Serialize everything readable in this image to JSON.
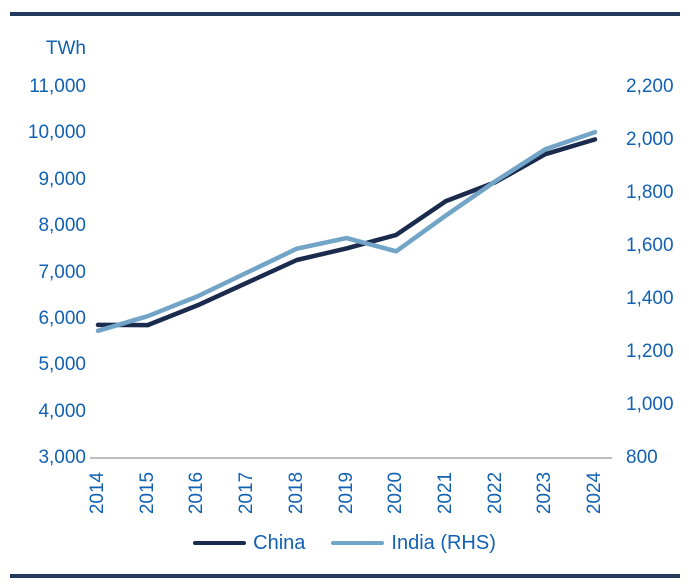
{
  "chart_data": {
    "type": "line",
    "title": "",
    "unit_label": "TWh",
    "x": [
      "2014",
      "2015",
      "2016",
      "2017",
      "2018",
      "2019",
      "2020",
      "2021",
      "2022",
      "2023",
      "2024"
    ],
    "series": [
      {
        "name": "China",
        "axis": "left",
        "color": "#1b2b4d",
        "values": [
          5870,
          5865,
          6290,
          6780,
          7270,
          7520,
          7810,
          8540,
          8950,
          9550,
          9870
        ]
      },
      {
        "name": "India (RHS)",
        "axis": "right",
        "color": "#71a4c6",
        "values": [
          1280,
          1335,
          1410,
          1500,
          1590,
          1630,
          1580,
          1715,
          1845,
          1965,
          2030
        ]
      }
    ],
    "left_axis": {
      "min": 3000,
      "max": 11000,
      "ticks": [
        "11,000",
        "10,000",
        "9,000",
        "8,000",
        "7,000",
        "6,000",
        "5,000",
        "4,000",
        "3,000"
      ]
    },
    "right_axis": {
      "min": 800,
      "max": 2200,
      "ticks": [
        "2,200",
        "2,000",
        "1,800",
        "1,600",
        "1,400",
        "1,200",
        "1,000",
        "800"
      ]
    },
    "legend_position": "bottom",
    "grid": "baseline-only"
  },
  "colors": {
    "axis_text_blue": "#1261b3",
    "rule_navy": "#24395e",
    "baseline_gray": "#a8a8a8",
    "china_navy": "#1b2b4d",
    "india_blue": "#71a4c6"
  }
}
